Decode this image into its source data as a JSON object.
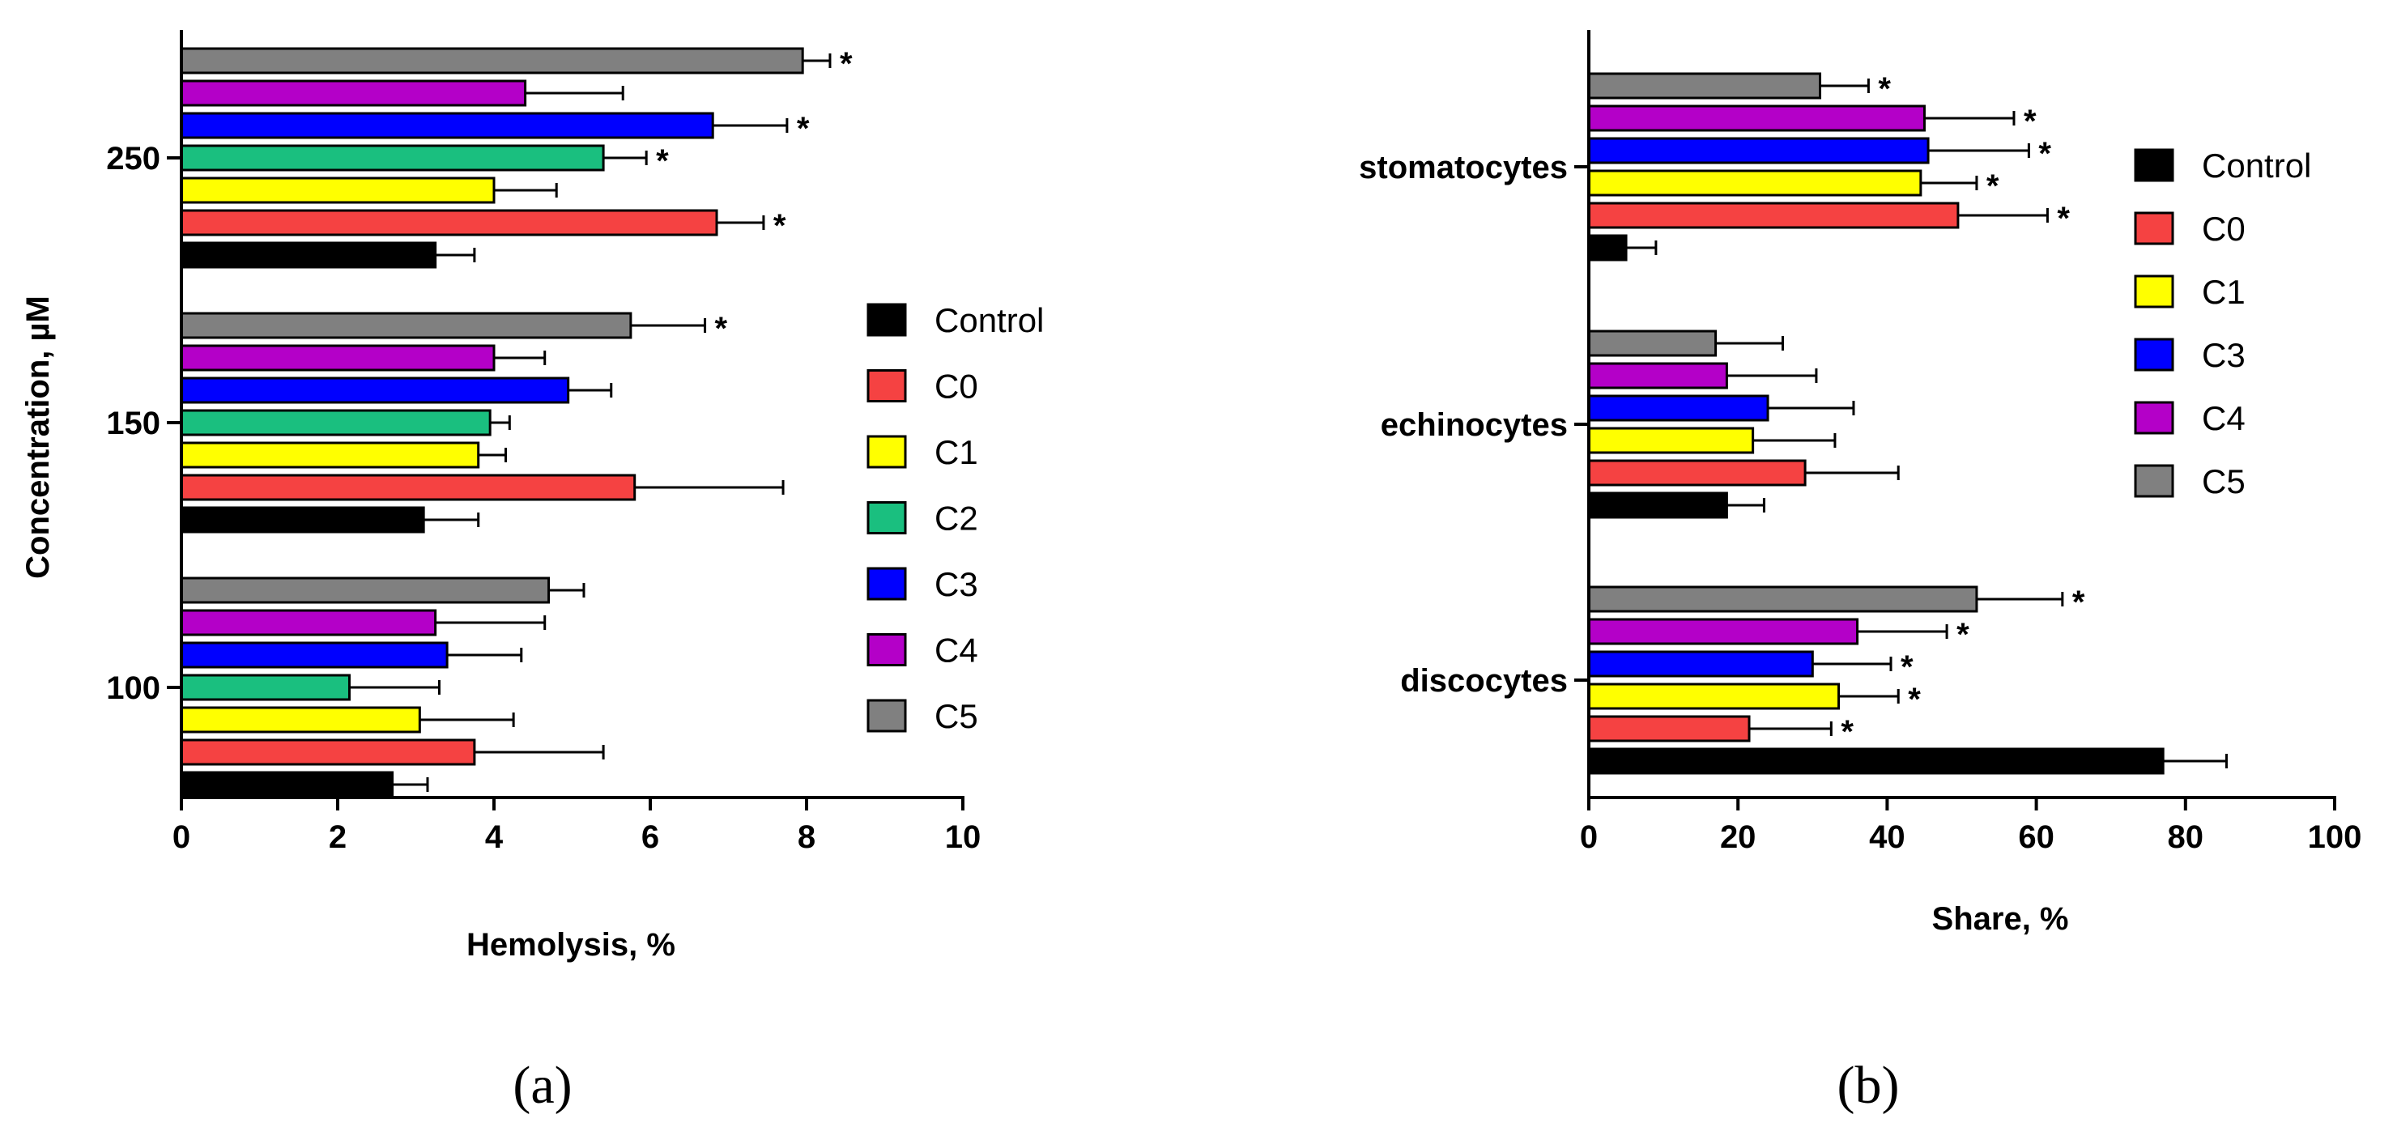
{
  "colors": {
    "Control": "#000000",
    "C0": "#f54242",
    "C1": "#ffff00",
    "C2": "#1abf7f",
    "C3": "#0000ff",
    "C4": "#b400c8",
    "C5": "#808080"
  },
  "chart_data": [
    {
      "type": "bar",
      "orientation": "horizontal",
      "panel_label": "(a)",
      "xlabel": "Hemolysis, %",
      "ylabel": "Concentration, µM",
      "xlim": [
        0,
        10
      ],
      "xticks": [
        "0",
        "2",
        "4",
        "6",
        "8",
        "10"
      ],
      "categories": [
        "100",
        "150",
        "250"
      ],
      "legend_position": "right",
      "series": [
        {
          "name": "Control",
          "values": [
            2.7,
            3.1,
            3.25
          ],
          "errors": [
            0.45,
            0.7,
            0.5
          ],
          "significant": [
            false,
            false,
            false
          ]
        },
        {
          "name": "C0",
          "values": [
            3.75,
            5.8,
            6.85
          ],
          "errors": [
            1.65,
            1.9,
            0.6
          ],
          "significant": [
            false,
            false,
            true
          ]
        },
        {
          "name": "C1",
          "values": [
            3.05,
            3.8,
            4.0
          ],
          "errors": [
            1.2,
            0.35,
            0.8
          ],
          "significant": [
            false,
            false,
            false
          ]
        },
        {
          "name": "C2",
          "values": [
            2.15,
            3.95,
            5.4
          ],
          "errors": [
            1.15,
            0.25,
            0.55
          ],
          "significant": [
            false,
            false,
            true
          ]
        },
        {
          "name": "C3",
          "values": [
            3.4,
            4.95,
            6.8
          ],
          "errors": [
            0.95,
            0.55,
            0.95
          ],
          "significant": [
            false,
            false,
            true
          ]
        },
        {
          "name": "C4",
          "values": [
            3.25,
            4.0,
            4.4
          ],
          "errors": [
            1.4,
            0.65,
            1.25
          ],
          "significant": [
            false,
            false,
            false
          ]
        },
        {
          "name": "C5",
          "values": [
            4.7,
            5.75,
            7.95
          ],
          "errors": [
            0.45,
            0.95,
            0.35
          ],
          "significant": [
            false,
            true,
            true
          ]
        }
      ],
      "significance_marker": "*"
    },
    {
      "type": "bar",
      "orientation": "horizontal",
      "panel_label": "(b)",
      "xlabel": "Share, %",
      "ylabel": "",
      "xlim": [
        0,
        100
      ],
      "xticks": [
        "0",
        "20",
        "40",
        "60",
        "80",
        "100"
      ],
      "categories": [
        "discocytes",
        "echinocytes",
        "stomatocytes"
      ],
      "legend_position": "right",
      "series": [
        {
          "name": "Control",
          "values": [
            77,
            18.5,
            5
          ],
          "errors": [
            8.5,
            5,
            4
          ],
          "significant": [
            false,
            false,
            false
          ]
        },
        {
          "name": "C0",
          "values": [
            21.5,
            29,
            49.5
          ],
          "errors": [
            11,
            12.5,
            12
          ],
          "significant": [
            true,
            false,
            true
          ]
        },
        {
          "name": "C1",
          "values": [
            33.5,
            22,
            44.5
          ],
          "errors": [
            8,
            11,
            7.5
          ],
          "significant": [
            true,
            false,
            true
          ]
        },
        {
          "name": "C3",
          "values": [
            30,
            24,
            45.5
          ],
          "errors": [
            10.5,
            11.5,
            13.5
          ],
          "significant": [
            true,
            false,
            true
          ]
        },
        {
          "name": "C4",
          "values": [
            36,
            18.5,
            45
          ],
          "errors": [
            12,
            12,
            12
          ],
          "significant": [
            true,
            false,
            true
          ]
        },
        {
          "name": "C5",
          "values": [
            52,
            17,
            31
          ],
          "errors": [
            11.5,
            9,
            6.5
          ],
          "significant": [
            true,
            false,
            true
          ]
        }
      ],
      "significance_marker": "*"
    }
  ]
}
